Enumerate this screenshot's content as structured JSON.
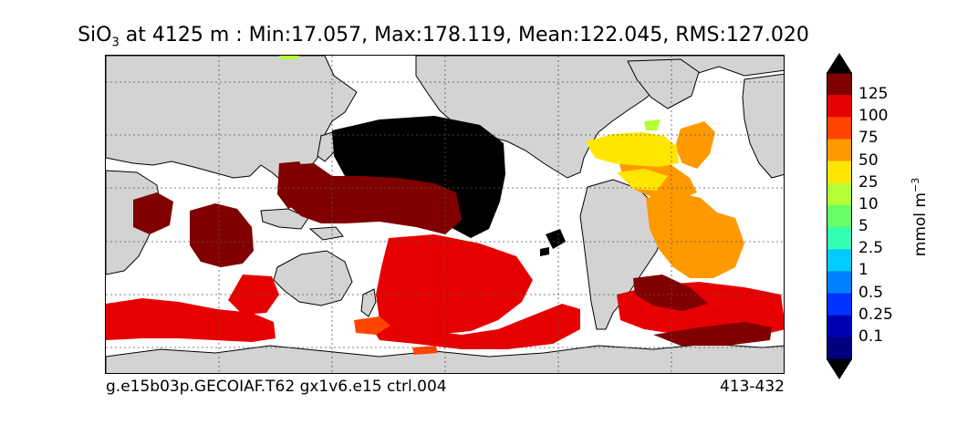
{
  "title": {
    "prefix": "SiO",
    "subscript": "3",
    "rest": " at 4125 m : Min:17.057, Max:178.119, Mean:122.045, RMS:127.020"
  },
  "footer": {
    "case_name": "g.e15b03p.GECOIAF.T62 gx1v6.e15 ctrl.004",
    "years": "413-432"
  },
  "colorbar": {
    "unit_base": "mmol m",
    "unit_exp": "−3",
    "tick_labels": [
      "125",
      "100",
      "75",
      "50",
      "25",
      "10",
      "5",
      "2.5",
      "1",
      "0.5",
      "0.25",
      "0.1"
    ],
    "colors": [
      "#800000",
      "#e60000",
      "#ff4500",
      "#ff9900",
      "#ffe600",
      "#b3ff33",
      "#66ff66",
      "#33ffb3",
      "#00ccff",
      "#0080ff",
      "#0033ff",
      "#0000b3",
      "#000080"
    ]
  },
  "map": {
    "land_color": "#d3d3d3",
    "no_data_color": "#ffffff",
    "over_max_color": "#000000",
    "gridlines": "dotted"
  }
}
